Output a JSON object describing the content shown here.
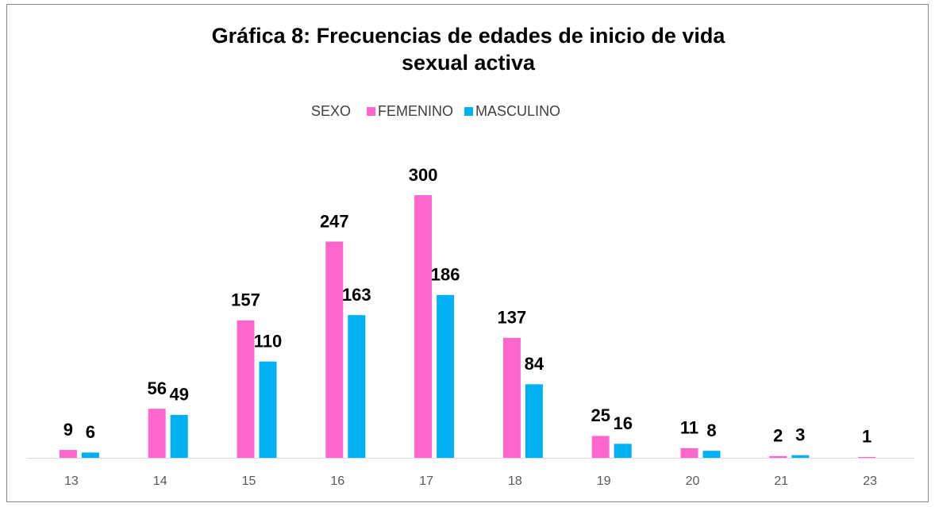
{
  "chart_data": {
    "type": "bar",
    "title": "Gráfica 8: Frecuencias de edades de inicio de vida sexual activa",
    "legend_title": "SEXO",
    "categories": [
      "13",
      "14",
      "15",
      "16",
      "17",
      "18",
      "19",
      "20",
      "21",
      "23"
    ],
    "series": [
      {
        "name": "FEMENINO",
        "color": "#ff66cc",
        "values": [
          9,
          56,
          157,
          247,
          300,
          137,
          25,
          11,
          2,
          1
        ]
      },
      {
        "name": "MASCULINO",
        "color": "#00b0f0",
        "values": [
          6,
          49,
          110,
          163,
          186,
          84,
          16,
          8,
          3,
          null
        ]
      }
    ],
    "legend": "top"
  }
}
